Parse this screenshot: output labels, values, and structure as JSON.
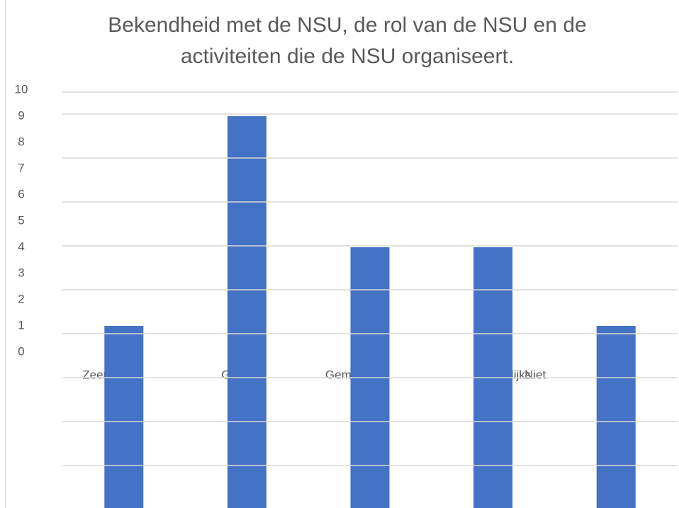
{
  "chart_data": {
    "type": "bar",
    "title": "Bekendheid met de NSU, de rol van de NSU en de activiteiten die de NSU organiseert.",
    "categories": [
      "Zeer goed",
      "Goed",
      "Gemiddeld",
      "Nauwelijks",
      "Niet"
    ],
    "values": [
      1,
      9,
      4,
      4,
      1
    ],
    "color": "#4472c4",
    "ylim": [
      0,
      10
    ],
    "yticks": [
      0,
      1,
      2,
      3,
      4,
      5,
      6,
      7,
      8,
      9,
      10
    ],
    "grid": false
  }
}
